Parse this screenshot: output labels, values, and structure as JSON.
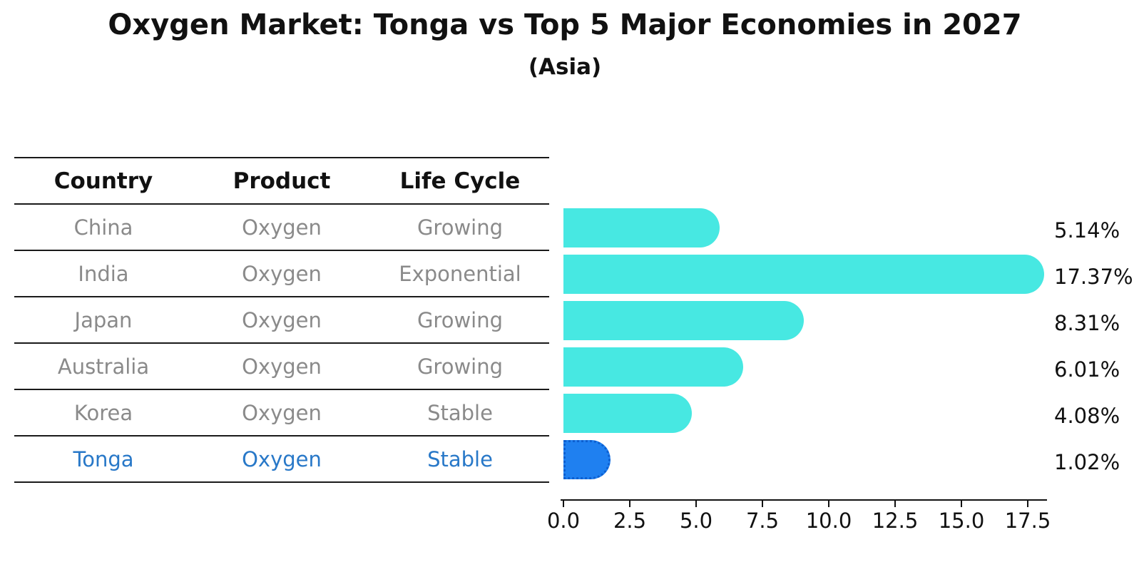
{
  "title": "Oxygen Market: Tonga vs Top 5 Major Economies in 2027",
  "subtitle": "(Asia)",
  "colors": {
    "bar_default": "#47e8e2",
    "bar_highlight": "#1f80f0",
    "bar_highlight_edge": "#0d5fd0",
    "highlight_text": "#2878c8",
    "row_text": "#8a8a8a",
    "ink": "#111111",
    "line": "#1a1a1a"
  },
  "table": {
    "headers": [
      "Country",
      "Product",
      "Life Cycle"
    ],
    "rows": [
      {
        "country": "China",
        "product": "Oxygen",
        "life_cycle": "Growing"
      },
      {
        "country": "India",
        "product": "Oxygen",
        "life_cycle": "Exponential"
      },
      {
        "country": "Japan",
        "product": "Oxygen",
        "life_cycle": "Growing"
      },
      {
        "country": "Australia",
        "product": "Oxygen",
        "life_cycle": "Growing"
      },
      {
        "country": "Korea",
        "product": "Oxygen",
        "life_cycle": "Stable"
      },
      {
        "country": "Tonga",
        "product": "Oxygen",
        "life_cycle": "Stable"
      }
    ]
  },
  "chart_data": {
    "type": "bar",
    "orientation": "horizontal",
    "title": "Oxygen Market: Tonga vs Top 5 Major Economies in 2027 (Asia)",
    "categories": [
      "China",
      "India",
      "Japan",
      "Australia",
      "Korea",
      "Tonga"
    ],
    "values": [
      5.14,
      17.37,
      8.31,
      6.01,
      4.08,
      1.02
    ],
    "value_labels": [
      "5.14%",
      "17.37%",
      "8.31%",
      "6.01%",
      "4.08%",
      "1.02%"
    ],
    "highlight_index": 5,
    "xlabel": "",
    "ylabel": "",
    "xlim": [
      0,
      18.3
    ],
    "x_ticks": [
      "0.0",
      "2.5",
      "5.0",
      "7.5",
      "10.0",
      "12.5",
      "15.0",
      "17.5"
    ],
    "grid": false,
    "legend": false
  }
}
